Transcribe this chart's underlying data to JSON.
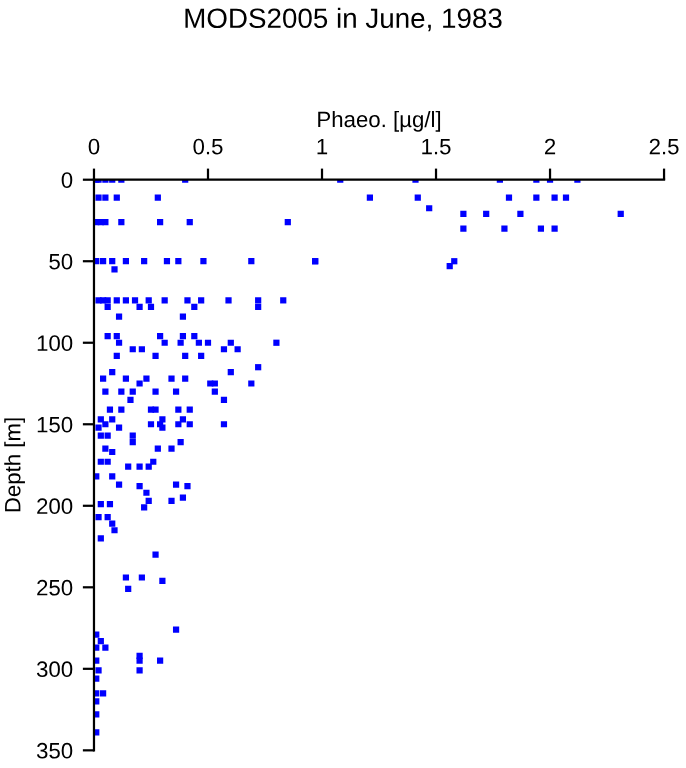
{
  "chart_data": {
    "type": "scatter",
    "title": "MODS2005 in June, 1983",
    "xlabel": "Phaeo. [µg/l]",
    "ylabel": "Depth [m]",
    "xlim": [
      0,
      2.5
    ],
    "xticks": [
      0,
      0.5,
      1,
      1.5,
      2,
      2.5
    ],
    "ylim": [
      350,
      0
    ],
    "yticks": [
      0,
      50,
      100,
      150,
      200,
      250,
      300,
      350
    ],
    "grid": false,
    "marker": "square",
    "series": [
      {
        "color": "#0000ff",
        "x": [
          0.01,
          0.02,
          0.05,
          0.08,
          0.12,
          0.4,
          1.08,
          1.41,
          1.78,
          1.94,
          2.0,
          2.12,
          0.02,
          0.05,
          0.1,
          0.28,
          1.21,
          1.42,
          1.82,
          1.94,
          2.02,
          2.07,
          1.47,
          1.62,
          1.72,
          1.87,
          2.31,
          1.62,
          1.8,
          1.96,
          2.02,
          0.97,
          1.58,
          1.56,
          0.01,
          0.03,
          0.05,
          0.12,
          0.29,
          0.42,
          0.85,
          0.01,
          0.04,
          0.08,
          0.14,
          0.22,
          0.32,
          0.37,
          0.48,
          0.69,
          0.97,
          0.09,
          0.02,
          0.04,
          0.06,
          0.1,
          0.14,
          0.18,
          0.24,
          0.31,
          0.41,
          0.47,
          0.59,
          0.72,
          0.83,
          0.06,
          0.2,
          0.25,
          0.44,
          0.72,
          0.11,
          0.39,
          0.06,
          0.1,
          0.29,
          0.39,
          0.44,
          0.11,
          0.31,
          0.38,
          0.46,
          0.5,
          0.6,
          0.8,
          0.17,
          0.21,
          0.57,
          0.63,
          0.1,
          0.27,
          0.4,
          0.47,
          0.72,
          0.08,
          0.6,
          0.04,
          0.14,
          0.23,
          0.34,
          0.4,
          0.2,
          0.51,
          0.53,
          0.69,
          0.05,
          0.12,
          0.17,
          0.27,
          0.36,
          0.53,
          0.16,
          0.57,
          0.07,
          0.12,
          0.25,
          0.27,
          0.37,
          0.42,
          0.03,
          0.08,
          0.3,
          0.39,
          0.05,
          0.25,
          0.29,
          0.37,
          0.42,
          0.57,
          0.02,
          0.11,
          0.3,
          0.03,
          0.06,
          0.17,
          0.17,
          0.38,
          0.05,
          0.28,
          0.34,
          0.08,
          0.03,
          0.06,
          0.26,
          0.15,
          0.2,
          0.24,
          0.01,
          0.08,
          0.11,
          0.36,
          0.2,
          0.41,
          0.23,
          0.39,
          0.24,
          0.34,
          0.03,
          0.07,
          0.22,
          0.02,
          0.06,
          0.08,
          0.09,
          0.03,
          0.27,
          0.14,
          0.21,
          0.3,
          0.15,
          0.36,
          0.01,
          0.03,
          0.05,
          0.01,
          0.2,
          0.01,
          0.2,
          0.29,
          0.02,
          0.2,
          0.01,
          0.04,
          0.01,
          0.01,
          0.01,
          0.01
        ],
        "values": [
          0,
          0,
          0,
          0,
          0,
          0,
          0,
          0,
          0,
          0,
          0,
          0,
          11,
          11,
          11,
          11,
          11,
          11,
          11,
          11,
          11,
          11,
          17.5,
          21,
          21,
          21,
          21,
          30,
          30,
          30,
          30,
          50,
          50,
          53,
          26,
          26,
          26,
          26,
          26,
          26,
          26,
          50,
          50,
          50,
          50,
          50,
          50,
          50,
          50,
          50,
          50,
          55,
          74,
          74,
          74,
          74,
          74,
          74,
          74,
          74,
          74,
          74,
          74,
          74,
          74,
          78,
          78,
          78,
          78,
          78,
          84,
          84,
          96,
          96,
          96,
          96,
          96,
          100,
          100,
          100,
          100,
          100,
          100,
          100,
          104,
          104,
          104,
          104,
          108,
          108,
          108,
          108,
          115,
          118,
          118,
          122,
          122,
          122,
          122,
          122,
          125,
          125,
          125,
          125,
          130,
          130,
          130,
          130,
          130,
          130,
          135,
          135,
          141,
          141,
          141,
          141,
          141,
          141,
          147,
          147,
          147,
          147,
          150,
          150,
          150,
          150,
          150,
          150,
          152,
          152,
          152,
          157,
          157,
          157,
          161,
          161,
          165,
          165,
          165,
          167,
          173,
          173,
          173,
          176,
          176,
          176,
          182,
          182,
          187,
          187,
          188,
          188,
          192,
          195,
          197,
          197,
          199,
          199,
          201,
          207,
          207,
          211,
          215,
          220,
          230,
          244,
          244,
          246,
          251,
          276,
          279,
          283,
          287,
          287,
          292,
          295,
          295,
          295,
          301,
          301,
          306,
          315,
          315,
          320,
          328,
          339
        ]
      }
    ]
  }
}
